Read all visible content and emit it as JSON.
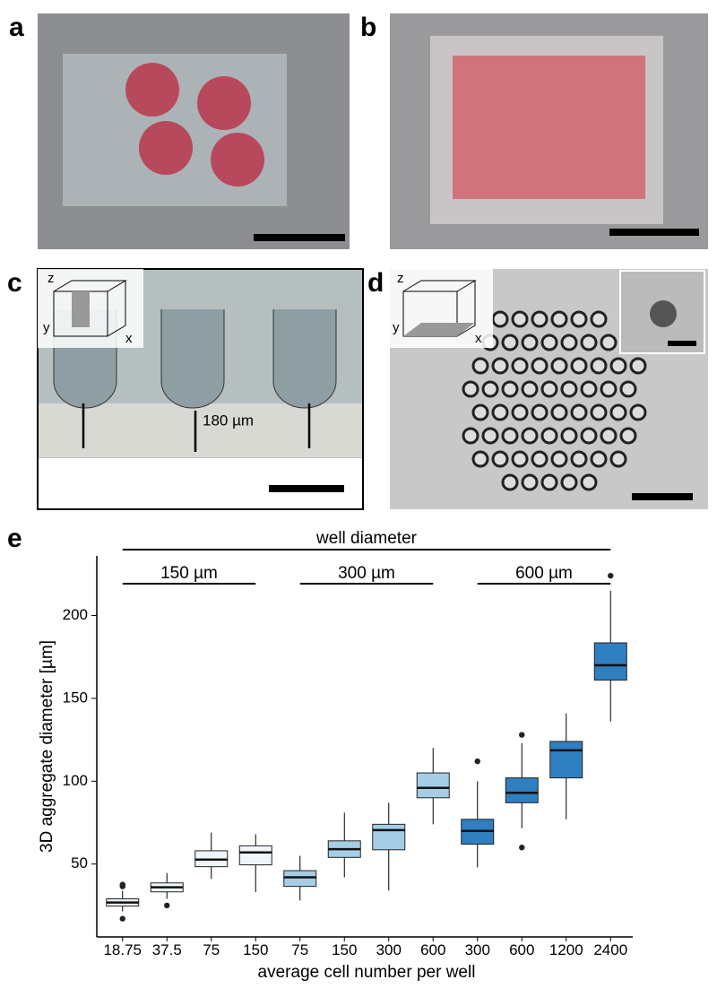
{
  "panels": [
    {
      "label": "a"
    },
    {
      "label": "b"
    },
    {
      "label": "c",
      "annotation": "180 µm",
      "axes": [
        "z",
        "y",
        "x"
      ]
    },
    {
      "label": "d",
      "axes": [
        "z",
        "y",
        "x"
      ]
    },
    {
      "label": "e"
    }
  ],
  "chart_data": {
    "type": "box",
    "ylabel": "3D aggregate diameter [µm]",
    "xlabel": "average cell number per well",
    "group_title": "well diameter",
    "ylim": [
      6,
      236
    ],
    "yticks": [
      50,
      100,
      150,
      200
    ],
    "series": [
      {
        "name": "150 µm",
        "color": "#eef5fb",
        "categories": [
          "18.75",
          "37.5",
          "75",
          "150"
        ],
        "whislo": [
          21.4,
          29,
          41,
          33
        ],
        "q1": [
          24.6,
          33.2,
          48.4,
          49.5
        ],
        "median": [
          26.8,
          36,
          52.7,
          57
        ],
        "q3": [
          29,
          38.6,
          58,
          61
        ],
        "whishi": [
          33.8,
          44.6,
          69,
          68
        ],
        "fliers": [
          [
            37.6,
            36.5,
            17
          ],
          [
            25
          ],
          [],
          []
        ]
      },
      {
        "name": "300 µm",
        "color": "#a6cde6",
        "categories": [
          "75",
          "150",
          "300",
          "600"
        ],
        "whislo": [
          28,
          42,
          34,
          74
        ],
        "q1": [
          36.5,
          54,
          58.6,
          90
        ],
        "median": [
          42,
          59,
          70.5,
          96
        ],
        "q3": [
          46,
          64,
          74,
          105
        ],
        "whishi": [
          55,
          81,
          87,
          120
        ],
        "fliers": [
          [],
          [],
          [],
          []
        ]
      },
      {
        "name": "600 µm",
        "color": "#2f7fc1",
        "categories": [
          "300",
          "600",
          "1200",
          "2400"
        ],
        "whislo": [
          48,
          71.6,
          77,
          136
        ],
        "q1": [
          62,
          87,
          102,
          161
        ],
        "median": [
          70,
          93,
          118.6,
          170
        ],
        "q3": [
          77,
          102,
          124,
          183.5
        ],
        "whishi": [
          100,
          123,
          141,
          215
        ],
        "fliers": [
          [
            112
          ],
          [
            128,
            60
          ],
          [],
          [
            224
          ]
        ]
      }
    ]
  }
}
